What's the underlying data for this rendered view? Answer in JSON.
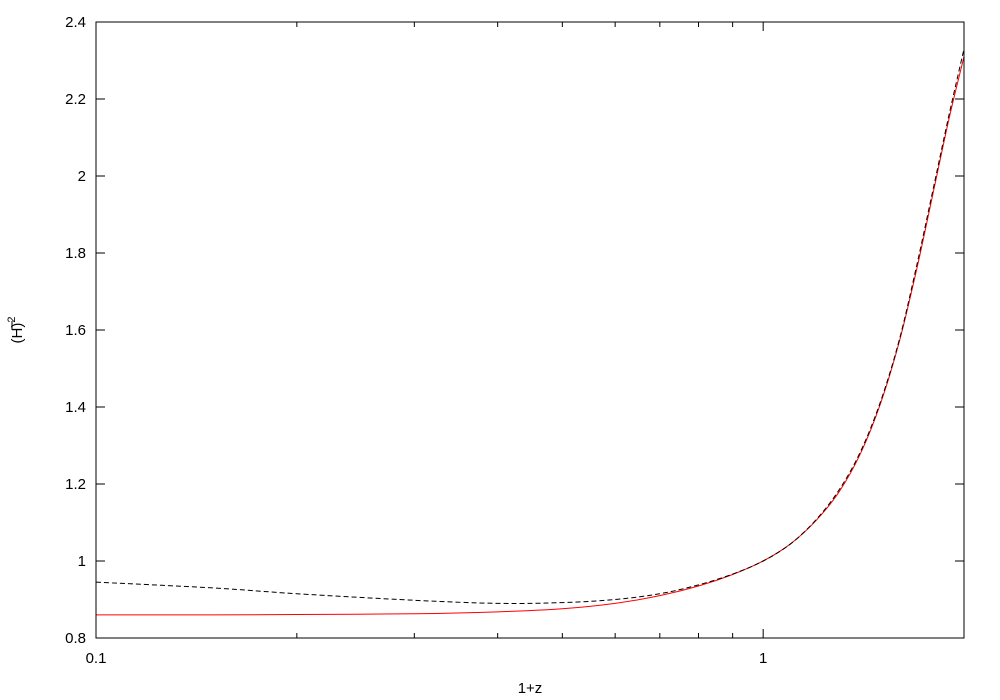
{
  "chart_data": {
    "type": "line",
    "title": "",
    "xlabel": "1+z",
    "ylabel_base": "(H)",
    "ylabel_sup": "2",
    "x_scale": "log",
    "xlim": [
      0.1,
      2.0
    ],
    "ylim": [
      0.8,
      2.4
    ],
    "grid": false,
    "legend": "none",
    "x_ticks": [
      {
        "value": 0.1,
        "label": "0.1"
      },
      {
        "value": 1,
        "label": "1"
      }
    ],
    "y_ticks": [
      {
        "value": 0.8,
        "label": "0.8"
      },
      {
        "value": 1.0,
        "label": "1"
      },
      {
        "value": 1.2,
        "label": "1.2"
      },
      {
        "value": 1.4,
        "label": "1.4"
      },
      {
        "value": 1.6,
        "label": "1.6"
      },
      {
        "value": 1.8,
        "label": "1.8"
      },
      {
        "value": 2.0,
        "label": "2"
      },
      {
        "value": 2.2,
        "label": "2.2"
      },
      {
        "value": 2.4,
        "label": "2.4"
      }
    ],
    "series": [
      {
        "color": "#ff0000",
        "dash": "solid",
        "x": [
          0.1,
          0.15,
          0.2,
          0.3,
          0.4,
          0.5,
          0.6,
          0.7,
          0.8,
          0.9,
          1.0,
          1.1,
          1.2,
          1.3,
          1.4,
          1.5,
          1.6,
          1.7,
          1.8,
          1.9,
          2.0
        ],
        "y": [
          0.86,
          0.86,
          0.861,
          0.863,
          0.868,
          0.876,
          0.89,
          0.91,
          0.935,
          0.965,
          1.0,
          1.045,
          1.105,
          1.18,
          1.28,
          1.41,
          1.57,
          1.76,
          1.96,
          2.15,
          2.31
        ]
      },
      {
        "color": "#000000",
        "dash": "dashed",
        "x": [
          0.1,
          0.15,
          0.2,
          0.3,
          0.4,
          0.5,
          0.6,
          0.7,
          0.8,
          0.9,
          1.0,
          1.1,
          1.2,
          1.3,
          1.4,
          1.5,
          1.6,
          1.7,
          1.8,
          1.9,
          2.0
        ],
        "y": [
          0.945,
          0.93,
          0.915,
          0.898,
          0.89,
          0.892,
          0.9,
          0.915,
          0.938,
          0.966,
          1.0,
          1.045,
          1.107,
          1.185,
          1.285,
          1.415,
          1.575,
          1.77,
          1.97,
          2.16,
          2.33
        ]
      }
    ]
  }
}
